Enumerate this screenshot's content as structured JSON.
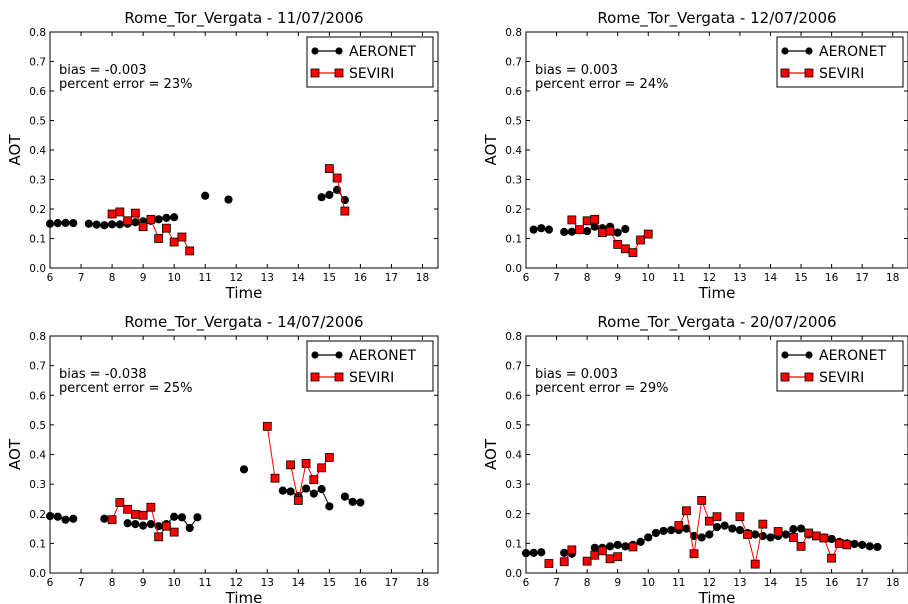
{
  "chart_data": [
    {
      "type": "scatter",
      "title": "Rome_Tor_Vergata - 11/07/2006",
      "xlabel": "Time",
      "ylabel": "AOT",
      "xlim": [
        6,
        18.5
      ],
      "ylim": [
        0,
        0.8
      ],
      "xticks": [
        "6",
        "7",
        "8",
        "9",
        "10",
        "11",
        "12",
        "13",
        "14",
        "15",
        "16",
        "17",
        "18"
      ],
      "yticks": [
        "0.0",
        "0.1",
        "0.2",
        "0.3",
        "0.4",
        "0.5",
        "0.6",
        "0.7",
        "0.8"
      ],
      "annotations": [
        "bias = -0.003",
        "percent error = 23%"
      ],
      "legend_position": "top-right",
      "series": [
        {
          "name": "AERONET",
          "color": "#000000",
          "marker": "circle",
          "x": [
            6.0,
            6.25,
            6.5,
            6.75,
            7.25,
            7.5,
            7.75,
            8.0,
            8.25,
            8.5,
            8.75,
            9.0,
            9.25,
            9.5,
            9.75,
            10.0,
            11.0,
            11.75,
            14.75,
            15.0,
            15.25,
            15.5
          ],
          "y": [
            0.15,
            0.152,
            0.153,
            0.152,
            0.15,
            0.147,
            0.145,
            0.148,
            0.148,
            0.15,
            0.155,
            0.158,
            0.16,
            0.165,
            0.17,
            0.172,
            0.245,
            0.232,
            0.24,
            0.248,
            0.265,
            0.23
          ]
        },
        {
          "name": "SEVIRI",
          "color": "#ff0000",
          "marker": "square",
          "x": [
            8.0,
            8.25,
            8.5,
            8.75,
            9.0,
            9.25,
            9.5,
            9.75,
            10.0,
            10.25,
            10.5,
            15.0,
            15.25,
            15.5
          ],
          "y": [
            0.183,
            0.19,
            0.16,
            0.186,
            0.14,
            0.165,
            0.1,
            0.135,
            0.088,
            0.105,
            0.058,
            0.337,
            0.305,
            0.193
          ]
        }
      ]
    },
    {
      "type": "scatter",
      "title": "Rome_Tor_Vergata - 12/07/2006",
      "xlabel": "Time",
      "ylabel": "AOT",
      "xlim": [
        6,
        18.5
      ],
      "ylim": [
        0,
        0.8
      ],
      "xticks": [
        "6",
        "7",
        "8",
        "9",
        "10",
        "11",
        "12",
        "13",
        "14",
        "15",
        "16",
        "17",
        "18"
      ],
      "yticks": [
        "0.0",
        "0.1",
        "0.2",
        "0.3",
        "0.4",
        "0.5",
        "0.6",
        "0.7",
        "0.8"
      ],
      "annotations": [
        "bias = 0.003",
        "percent error = 24%"
      ],
      "legend_position": "top-right",
      "series": [
        {
          "name": "AERONET",
          "color": "#000000",
          "marker": "circle",
          "x": [
            6.25,
            6.5,
            6.75,
            7.25,
            7.5,
            7.75,
            8.0,
            8.25,
            8.5,
            8.75,
            9.0,
            9.25
          ],
          "y": [
            0.13,
            0.135,
            0.13,
            0.122,
            0.123,
            0.128,
            0.125,
            0.14,
            0.135,
            0.14,
            0.12,
            0.132
          ]
        },
        {
          "name": "SEVIRI",
          "color": "#ff0000",
          "marker": "square",
          "x": [
            7.5,
            7.75,
            8.0,
            8.25,
            8.5,
            8.75,
            9.0,
            9.25,
            9.5,
            9.75,
            10.0
          ],
          "y": [
            0.163,
            0.13,
            0.16,
            0.165,
            0.12,
            0.125,
            0.08,
            0.065,
            0.052,
            0.095,
            0.115
          ]
        }
      ]
    },
    {
      "type": "scatter",
      "title": "Rome_Tor_Vergata - 14/07/2006",
      "xlabel": "Time",
      "ylabel": "AOT",
      "xlim": [
        6,
        18.5
      ],
      "ylim": [
        0,
        0.8
      ],
      "xticks": [
        "6",
        "7",
        "8",
        "9",
        "10",
        "11",
        "12",
        "13",
        "14",
        "15",
        "16",
        "17",
        "18"
      ],
      "yticks": [
        "0.0",
        "0.1",
        "0.2",
        "0.3",
        "0.4",
        "0.5",
        "0.6",
        "0.7",
        "0.8"
      ],
      "annotations": [
        "bias = -0.038",
        "percent error = 25%"
      ],
      "legend_position": "top-right",
      "series": [
        {
          "name": "AERONET",
          "color": "#000000",
          "marker": "circle",
          "x": [
            6.0,
            6.25,
            6.5,
            6.75,
            7.75,
            8.5,
            8.75,
            9.0,
            9.25,
            9.5,
            9.75,
            10.0,
            10.25,
            10.5,
            10.75,
            12.25,
            13.5,
            13.75,
            14.0,
            14.25,
            14.5,
            14.75,
            15.0,
            15.5,
            15.75,
            16.0
          ],
          "y": [
            0.192,
            0.19,
            0.18,
            0.183,
            0.183,
            0.168,
            0.165,
            0.16,
            0.165,
            0.158,
            0.165,
            0.19,
            0.188,
            0.152,
            0.188,
            0.35,
            0.278,
            0.275,
            0.26,
            0.285,
            0.268,
            0.283,
            0.225,
            0.258,
            0.24,
            0.238
          ]
        },
        {
          "name": "SEVIRI",
          "color": "#ff0000",
          "marker": "square",
          "x": [
            8.0,
            8.25,
            8.5,
            8.75,
            9.0,
            9.25,
            9.5,
            9.75,
            10.0,
            13.0,
            13.25,
            13.75,
            14.0,
            14.25,
            14.5,
            14.75,
            15.0
          ],
          "y": [
            0.18,
            0.238,
            0.215,
            0.198,
            0.195,
            0.222,
            0.122,
            0.158,
            0.138,
            0.495,
            0.32,
            0.365,
            0.245,
            0.37,
            0.315,
            0.355,
            0.39
          ]
        }
      ]
    },
    {
      "type": "scatter",
      "title": "Rome_Tor_Vergata - 20/07/2006",
      "xlabel": "Time",
      "ylabel": "AOT",
      "xlim": [
        6,
        18.5
      ],
      "ylim": [
        0,
        0.8
      ],
      "xticks": [
        "6",
        "7",
        "8",
        "9",
        "10",
        "11",
        "12",
        "13",
        "14",
        "15",
        "16",
        "17",
        "18"
      ],
      "yticks": [
        "0.0",
        "0.1",
        "0.2",
        "0.3",
        "0.4",
        "0.5",
        "0.6",
        "0.7",
        "0.8"
      ],
      "annotations": [
        "bias = 0.003",
        "percent error = 29%"
      ],
      "legend_position": "top-right",
      "series": [
        {
          "name": "AERONET",
          "color": "#000000",
          "marker": "circle",
          "x": [
            6.0,
            6.25,
            6.5,
            7.25,
            7.5,
            8.25,
            8.5,
            8.75,
            9.0,
            9.25,
            9.5,
            9.75,
            10.0,
            10.25,
            10.5,
            10.75,
            11.0,
            11.25,
            11.5,
            11.75,
            12.0,
            12.25,
            12.5,
            12.75,
            13.0,
            13.25,
            13.5,
            13.75,
            14.0,
            14.25,
            14.5,
            14.75,
            15.0,
            15.25,
            15.5,
            15.75,
            16.0,
            16.25,
            16.5,
            16.75,
            17.0,
            17.25,
            17.5
          ],
          "y": [
            0.067,
            0.068,
            0.07,
            0.068,
            0.065,
            0.085,
            0.085,
            0.09,
            0.095,
            0.09,
            0.095,
            0.105,
            0.12,
            0.135,
            0.142,
            0.145,
            0.145,
            0.15,
            0.125,
            0.12,
            0.13,
            0.155,
            0.16,
            0.15,
            0.145,
            0.135,
            0.13,
            0.125,
            0.12,
            0.125,
            0.13,
            0.148,
            0.15,
            0.13,
            0.125,
            0.12,
            0.115,
            0.105,
            0.1,
            0.098,
            0.095,
            0.09,
            0.088
          ]
        },
        {
          "name": "SEVIRI",
          "color": "#ff0000",
          "marker": "square",
          "x": [
            6.75,
            7.25,
            7.5,
            8.0,
            8.25,
            8.5,
            8.75,
            9.0,
            9.5,
            11.0,
            11.25,
            11.5,
            11.75,
            12.0,
            12.25,
            13.0,
            13.25,
            13.5,
            13.75,
            14.25,
            14.75,
            15.0,
            15.25,
            15.5,
            15.75,
            16.0,
            16.25,
            16.5
          ],
          "y": [
            0.032,
            0.038,
            0.078,
            0.04,
            0.06,
            0.075,
            0.048,
            0.055,
            0.088,
            0.16,
            0.21,
            0.065,
            0.245,
            0.175,
            0.19,
            0.19,
            0.13,
            0.03,
            0.165,
            0.14,
            0.12,
            0.09,
            0.135,
            0.125,
            0.118,
            0.05,
            0.1,
            0.095
          ]
        }
      ]
    }
  ]
}
